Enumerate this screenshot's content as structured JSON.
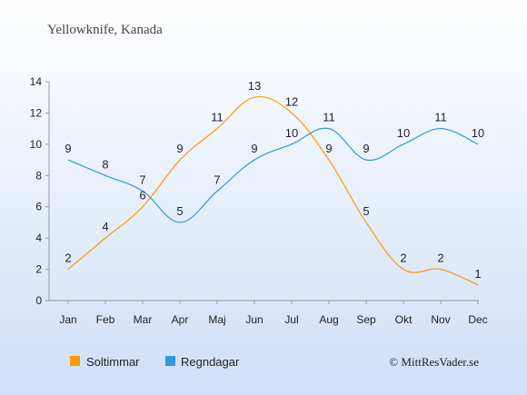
{
  "chart_data": {
    "type": "line",
    "title": "Yellowknife, Kanada",
    "categories": [
      "Jan",
      "Feb",
      "Mar",
      "Apr",
      "Maj",
      "Jun",
      "Jul",
      "Aug",
      "Sep",
      "Okt",
      "Nov",
      "Dec"
    ],
    "series": [
      {
        "name": "Soltimmar",
        "color": "#ff9900",
        "values": [
          2,
          4,
          6,
          9,
          11,
          13,
          12,
          9,
          5,
          2,
          2,
          1
        ]
      },
      {
        "name": "Regndagar",
        "color": "#3399dd",
        "values": [
          9,
          8,
          7,
          5,
          7,
          9,
          10,
          11,
          9,
          10,
          11,
          10
        ]
      }
    ],
    "ylim": [
      0,
      14
    ],
    "yticks": [
      0,
      2,
      4,
      6,
      8,
      10,
      12,
      14
    ],
    "grid": false,
    "legend_position": "bottom-left"
  },
  "credit": "© MittResVader.se",
  "colors": {
    "background_top": "#ffffff",
    "background_bottom": "#cfdff7"
  }
}
